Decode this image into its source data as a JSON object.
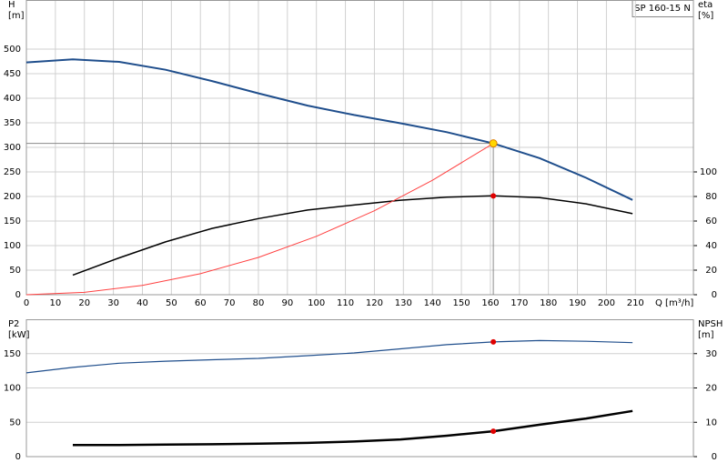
{
  "chart_data": [
    {
      "type": "line",
      "title": "SP 160-15 N",
      "xlabel": "Q [m³/h]",
      "ylabel": [
        "H",
        "[m]"
      ],
      "y2label": [
        "eta",
        "[%]"
      ],
      "xlim": [
        0,
        230
      ],
      "xticks": [
        0,
        10,
        20,
        30,
        40,
        50,
        60,
        70,
        80,
        90,
        100,
        110,
        120,
        130,
        140,
        150,
        160,
        170,
        180,
        190,
        200,
        210
      ],
      "ylim": [
        0,
        600
      ],
      "yticks": [
        0,
        50,
        100,
        150,
        200,
        250,
        300,
        350,
        400,
        450,
        500
      ],
      "y2lim": [
        0,
        240
      ],
      "y2ticks": [
        0,
        20,
        40,
        60,
        80,
        100
      ],
      "grid": true,
      "duty_point": {
        "x": 161,
        "y": 308,
        "color": "#ffd700"
      },
      "series": [
        {
          "color": "#1f4e8c",
          "width": 2,
          "duty_marker": "#e00000",
          "x": [
            0,
            16,
            32,
            48,
            64,
            80,
            97,
            113,
            129,
            145,
            161,
            177,
            193,
            209
          ],
          "values": [
            473,
            479,
            474,
            458,
            435,
            410,
            385,
            366,
            349,
            331,
            308,
            278,
            238,
            193
          ]
        },
        {
          "color": "#000000",
          "width": 1.5,
          "axis": "y2",
          "duty_marker": "#e00000",
          "x": [
            16,
            32,
            48,
            64,
            80,
            97,
            113,
            129,
            145,
            161,
            177,
            193,
            209
          ],
          "values": [
            16,
            30,
            43,
            54,
            62,
            69,
            73,
            77,
            79.5,
            80.5,
            79,
            74,
            66
          ]
        },
        {
          "color": "#ff4040",
          "width": 1,
          "x": [
            0,
            20,
            40,
            60,
            80,
            100,
            120,
            140,
            161
          ],
          "values": [
            0,
            4.8,
            19,
            42.8,
            76,
            118.8,
            171,
            233,
            308
          ]
        }
      ]
    },
    {
      "type": "line",
      "ylabel": [
        "P2",
        "[kW]"
      ],
      "y2label": [
        "NPSH",
        "[m]"
      ],
      "xlim": [
        0,
        230
      ],
      "ylim": [
        0,
        200
      ],
      "yticks": [
        0,
        50,
        100,
        150
      ],
      "y2lim": [
        0,
        40
      ],
      "y2ticks": [
        0,
        10,
        20,
        30
      ],
      "grid": true,
      "duty_x": 161,
      "series": [
        {
          "color": "#1f4e8c",
          "width": 1.2,
          "duty_marker": "#e00000",
          "x": [
            0,
            16,
            32,
            48,
            64,
            80,
            97,
            113,
            129,
            145,
            161,
            177,
            193,
            209
          ],
          "values": [
            122,
            130,
            136,
            139,
            141,
            143,
            147,
            151,
            157,
            163,
            167,
            169,
            168,
            166
          ]
        },
        {
          "color": "#000000",
          "width": 2.5,
          "axis": "y2",
          "duty_marker": "#e00000",
          "x": [
            16,
            32,
            48,
            64,
            80,
            97,
            113,
            129,
            145,
            161,
            177,
            193,
            209
          ],
          "values": [
            3.4,
            3.4,
            3.5,
            3.6,
            3.8,
            4.0,
            4.4,
            5.0,
            6.1,
            7.4,
            9.3,
            11.1,
            13.3
          ]
        }
      ]
    }
  ]
}
